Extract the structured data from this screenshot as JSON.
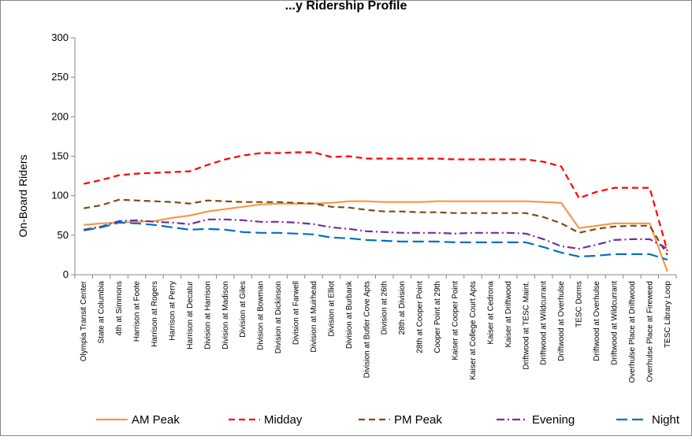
{
  "chart_data": {
    "type": "line",
    "title": "...y Ridership Profile",
    "xlabel": "",
    "ylabel": "On-Board Riders",
    "ylim": [
      0,
      300
    ],
    "yticks": [
      0,
      50,
      100,
      150,
      200,
      250,
      300
    ],
    "grid": false,
    "legend_position": "bottom",
    "categories": [
      "Olympia Transit Center",
      "State at Columbia",
      "4th at Simmons",
      "Harrison at Foote",
      "Harrison at Rogers",
      "Harrison at Perry",
      "Harrison at Decatur",
      "Division at Harrison",
      "Division at Madison",
      "Division at Giles",
      "Division at Bowman",
      "Division at Dickinson",
      "Division at Farwell",
      "Division at Muirhead",
      "Division at Elliot",
      "Division at Burbank",
      "Division at Butler Cove Apts",
      "Division at 26th",
      "28th at Division",
      "28th at Cooper Point",
      "Cooper Point at 29th",
      "Kaiser at Cooper Point",
      "Kaiser at College Court Apts",
      "Kaiser at Cedrona",
      "Kaiser at Driftwood",
      "Driftwood at TESC Maint.",
      "Driftwood at Wildcurrant",
      "Driftwood at Overhulse",
      "TESC Dorms",
      "Driftwood at Overhulse",
      "Driftwood at Wildcurrant",
      "Overhulse Place at Driftwood",
      "Overhulse Place at Fireweed",
      "TESC Library Loop"
    ],
    "series": [
      {
        "name": "AM Peak",
        "color": "#F79646",
        "dash": "solid",
        "values": [
          63,
          65,
          66,
          67,
          68,
          72,
          75,
          80,
          83,
          86,
          89,
          90,
          90,
          90,
          91,
          93,
          93,
          92,
          92,
          92,
          93,
          93,
          93,
          93,
          93,
          93,
          92,
          91,
          59,
          62,
          65,
          65,
          65,
          4
        ]
      },
      {
        "name": "Midday",
        "color": "#FF0000",
        "dash": "dash",
        "values": [
          115,
          120,
          126,
          128,
          129,
          130,
          131,
          139,
          146,
          151,
          154,
          154,
          155,
          155,
          149,
          150,
          147,
          147,
          147,
          147,
          147,
          146,
          146,
          146,
          146,
          146,
          143,
          137,
          97,
          105,
          110,
          110,
          110,
          30
        ]
      },
      {
        "name": "PM Peak",
        "color": "#7F4A10",
        "dash": "dash",
        "values": [
          84,
          88,
          95,
          94,
          93,
          92,
          90,
          94,
          93,
          92,
          92,
          92,
          91,
          90,
          86,
          85,
          82,
          80,
          80,
          79,
          79,
          78,
          78,
          78,
          78,
          78,
          73,
          65,
          53,
          58,
          61,
          62,
          62,
          25
        ]
      },
      {
        "name": "Evening",
        "color": "#7030A0",
        "dash": "dashdot",
        "values": [
          57,
          61,
          68,
          69,
          67,
          66,
          64,
          70,
          70,
          69,
          67,
          67,
          66,
          64,
          60,
          58,
          55,
          54,
          53,
          53,
          53,
          52,
          53,
          53,
          53,
          52,
          45,
          36,
          33,
          38,
          44,
          45,
          45,
          33
        ]
      },
      {
        "name": "Night",
        "color": "#0070C0",
        "dash": "longdash",
        "values": [
          56,
          60,
          66,
          65,
          63,
          60,
          57,
          58,
          57,
          54,
          53,
          53,
          52,
          51,
          47,
          46,
          44,
          43,
          42,
          42,
          42,
          41,
          41,
          41,
          41,
          41,
          35,
          28,
          23,
          24,
          26,
          26,
          26,
          19
        ]
      }
    ]
  }
}
